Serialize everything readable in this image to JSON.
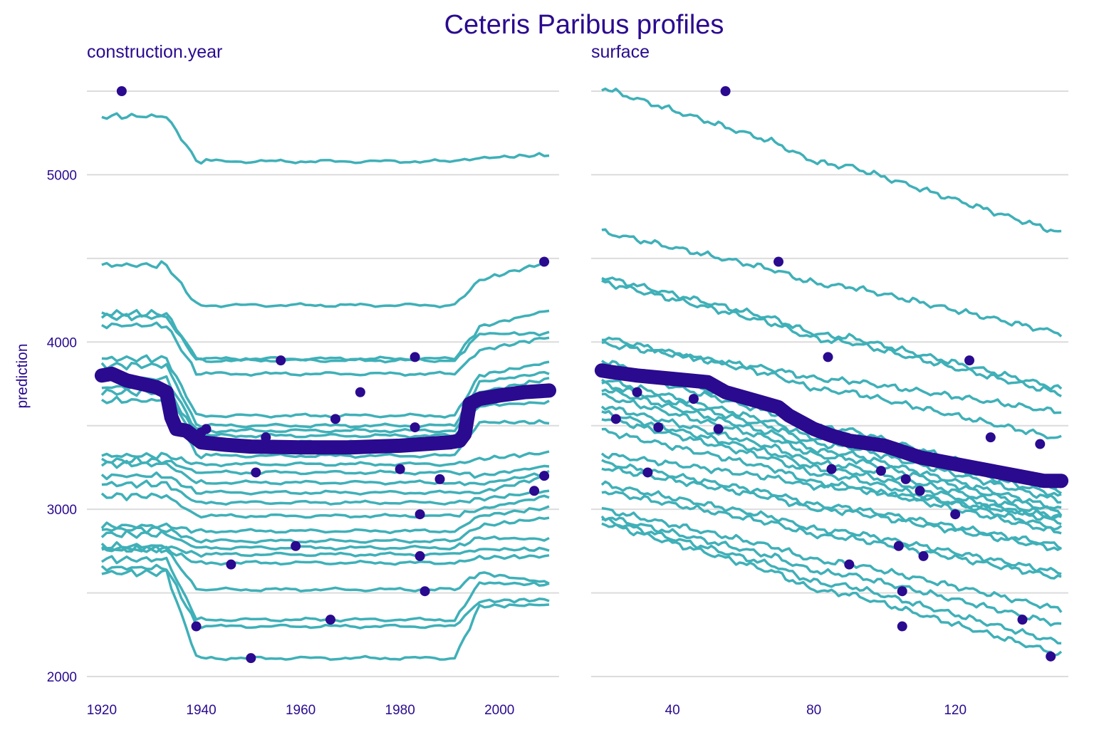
{
  "chart_data": {
    "type": "line",
    "title": "Ceteris Paribus profiles",
    "ylabel": "prediction",
    "ylim": [
      1950,
      5550
    ],
    "yticks": [
      2000,
      3000,
      4000,
      5000
    ],
    "ygrid_minor": [
      2500,
      3500,
      4500,
      5500
    ],
    "grid": true,
    "colors": {
      "profiles": "#3fb0b8",
      "average": "#2a0a8f",
      "points": "#2a0a8f",
      "text": "#2a0a8f",
      "grid": "#dcdcdc"
    },
    "panels": [
      {
        "subtitle": "construction.year",
        "xlim": [
          1917,
          2012
        ],
        "xticks": [
          1920,
          1940,
          1960,
          1980,
          2000
        ],
        "tick_labels": [
          "1920",
          "1940",
          "1960",
          "1980",
          "2000"
        ],
        "average": {
          "x": [
            1920,
            1922,
            1925,
            1928,
            1931,
            1933,
            1934,
            1935,
            1937,
            1940,
            1945,
            1950,
            1960,
            1970,
            1980,
            1985,
            1990,
            1992,
            1993,
            1994,
            1996,
            2000,
            2005,
            2010
          ],
          "y": [
            3800,
            3810,
            3770,
            3750,
            3730,
            3700,
            3550,
            3480,
            3470,
            3400,
            3385,
            3375,
            3370,
            3370,
            3380,
            3390,
            3400,
            3410,
            3450,
            3630,
            3660,
            3680,
            3700,
            3710
          ]
        },
        "profiles": [
          {
            "base": 5080,
            "pre": 5350,
            "post": 5100,
            "tail": 5120,
            "point": [
              1924,
              5500
            ]
          },
          {
            "base": 4220,
            "pre": 4460,
            "post": 4370,
            "tail": 4480,
            "point": [
              2009,
              4480
            ]
          },
          {
            "base": 3900,
            "pre": 4170,
            "post": 4090,
            "tail": 4190,
            "point": [
              1956,
              3890
            ]
          },
          {
            "base": 3890,
            "pre": 4150,
            "post": 4050,
            "tail": 4050,
            "point": [
              1983,
              3910
            ]
          },
          {
            "base": 3810,
            "pre": 4100,
            "post": 3950,
            "tail": 4030,
            "point": [
              1972,
              3700
            ]
          },
          {
            "base": 3560,
            "pre": 3900,
            "post": 3800,
            "tail": 3880,
            "point": [
              1967,
              3540
            ]
          },
          {
            "base": 3500,
            "pre": 3860,
            "post": 3760,
            "tail": 3820,
            "point": [
              1983,
              3490
            ]
          },
          {
            "base": 3470,
            "pre": 3780,
            "post": 3700,
            "tail": 3780,
            "point": [
              1941,
              3480
            ]
          },
          {
            "base": 3440,
            "pre": 3730,
            "post": 3650,
            "tail": 3700,
            "point": [
              1953,
              3430
            ]
          },
          {
            "base": 3400,
            "pre": 3700,
            "post": 3620,
            "tail": 3640,
            "point": [
              1940,
              3460
            ]
          },
          {
            "base": 3320,
            "pre": 3650,
            "post": 3520,
            "tail": 3520,
            "point": null
          },
          {
            "base": 3270,
            "pre": 3320,
            "post": 3300,
            "tail": 3340,
            "point": [
              1980,
              3240
            ]
          },
          {
            "base": 3220,
            "pre": 3290,
            "post": 3200,
            "tail": 3260,
            "point": [
              1951,
              3220
            ]
          },
          {
            "base": 3160,
            "pre": 3270,
            "post": 3150,
            "tail": 3220,
            "point": [
              1988,
              3180
            ]
          },
          {
            "base": 3100,
            "pre": 3200,
            "post": 3100,
            "tail": 3200,
            "point": [
              2009,
              3200
            ]
          },
          {
            "base": 3040,
            "pre": 3150,
            "post": 3060,
            "tail": 3110,
            "point": [
              2007,
              3110
            ]
          },
          {
            "base": 2960,
            "pre": 3080,
            "post": 3000,
            "tail": 3080,
            "point": [
              1984,
              2970
            ]
          },
          {
            "base": 2870,
            "pre": 2900,
            "post": 2960,
            "tail": 3010,
            "point": null
          },
          {
            "base": 2810,
            "pre": 2880,
            "post": 2900,
            "tail": 2950,
            "point": [
              1959,
              2780
            ]
          },
          {
            "base": 2770,
            "pre": 2850,
            "post": 2830,
            "tail": 2820,
            "point": [
              1984,
              2720
            ]
          },
          {
            "base": 2730,
            "pre": 2780,
            "post": 2760,
            "tail": 2760,
            "point": null
          },
          {
            "base": 2680,
            "pre": 2760,
            "post": 2710,
            "tail": 2720,
            "point": [
              1946,
              2670
            ]
          },
          {
            "base": 2520,
            "pre": 2760,
            "post": 2620,
            "tail": 2560,
            "point": [
              1985,
              2510
            ]
          },
          {
            "base": 2340,
            "pre": 2700,
            "post": 2560,
            "tail": 2550,
            "point": [
              1966,
              2340
            ]
          },
          {
            "base": 2300,
            "pre": 2650,
            "post": 2450,
            "tail": 2460,
            "point": [
              1939,
              2300
            ]
          },
          {
            "base": 2110,
            "pre": 2620,
            "post": 2420,
            "tail": 2430,
            "point": [
              1950,
              2110
            ]
          }
        ]
      },
      {
        "subtitle": "surface",
        "xlim": [
          17,
          152
        ],
        "xticks": [
          40,
          80,
          120
        ],
        "tick_labels": [
          "40",
          "80",
          "120"
        ],
        "average": {
          "x": [
            20,
            23,
            30,
            40,
            50,
            55,
            60,
            65,
            70,
            73,
            80,
            85,
            90,
            100,
            110,
            120,
            130,
            140,
            145,
            150
          ],
          "y": [
            3830,
            3820,
            3800,
            3780,
            3760,
            3700,
            3670,
            3640,
            3610,
            3560,
            3480,
            3440,
            3410,
            3380,
            3310,
            3270,
            3230,
            3190,
            3170,
            3170
          ]
        },
        "profiles": [
          {
            "start": 5520,
            "end": 4650,
            "point": [
              55,
              5500
            ]
          },
          {
            "start": 4660,
            "end": 4050,
            "point": [
              70,
              4480
            ]
          },
          {
            "start": 4390,
            "end": 3720,
            "point": [
              84,
              3910
            ]
          },
          {
            "start": 4360,
            "end": 3690,
            "point": [
              124,
              3890
            ]
          },
          {
            "start": 4030,
            "end": 3420,
            "point": [
              130,
              3430
            ]
          },
          {
            "start": 3990,
            "end": 3580,
            "point": [
              144,
              3390
            ]
          },
          {
            "start": 3890,
            "end": 3120,
            "point": [
              30,
              3700
            ]
          },
          {
            "start": 3850,
            "end": 3110,
            "point": [
              46,
              3660
            ]
          },
          {
            "start": 3780,
            "end": 3080,
            "point": [
              24,
              3540
            ]
          },
          {
            "start": 3750,
            "end": 3050,
            "point": [
              36,
              3490
            ]
          },
          {
            "start": 3720,
            "end": 3000,
            "point": [
              53,
              3480
            ]
          },
          {
            "start": 3680,
            "end": 2980,
            "point": [
              85,
              3240
            ]
          },
          {
            "start": 3620,
            "end": 2950,
            "point": [
              99,
              3230
            ]
          },
          {
            "start": 3580,
            "end": 2920,
            "point": [
              106,
              3180
            ]
          },
          {
            "start": 3550,
            "end": 2880,
            "point": [
              110,
              3110
            ]
          },
          {
            "start": 3470,
            "end": 2860,
            "point": null
          },
          {
            "start": 3330,
            "end": 2950,
            "point": [
              33,
              3220
            ]
          },
          {
            "start": 3280,
            "end": 2780,
            "point": [
              120,
              2970
            ]
          },
          {
            "start": 3250,
            "end": 2760,
            "point": [
              104,
              2780
            ]
          },
          {
            "start": 3150,
            "end": 2620,
            "point": [
              111,
              2720
            ]
          },
          {
            "start": 3110,
            "end": 2590,
            "point": [
              90,
              2670
            ]
          },
          {
            "start": 3000,
            "end": 2400,
            "point": [
              105,
              2510
            ]
          },
          {
            "start": 2960,
            "end": 2310,
            "point": [
              139,
              2340
            ]
          },
          {
            "start": 2940,
            "end": 2200,
            "point": [
              105,
              2300
            ]
          },
          {
            "start": 2920,
            "end": 2130,
            "point": [
              147,
              2120
            ]
          }
        ]
      }
    ]
  }
}
